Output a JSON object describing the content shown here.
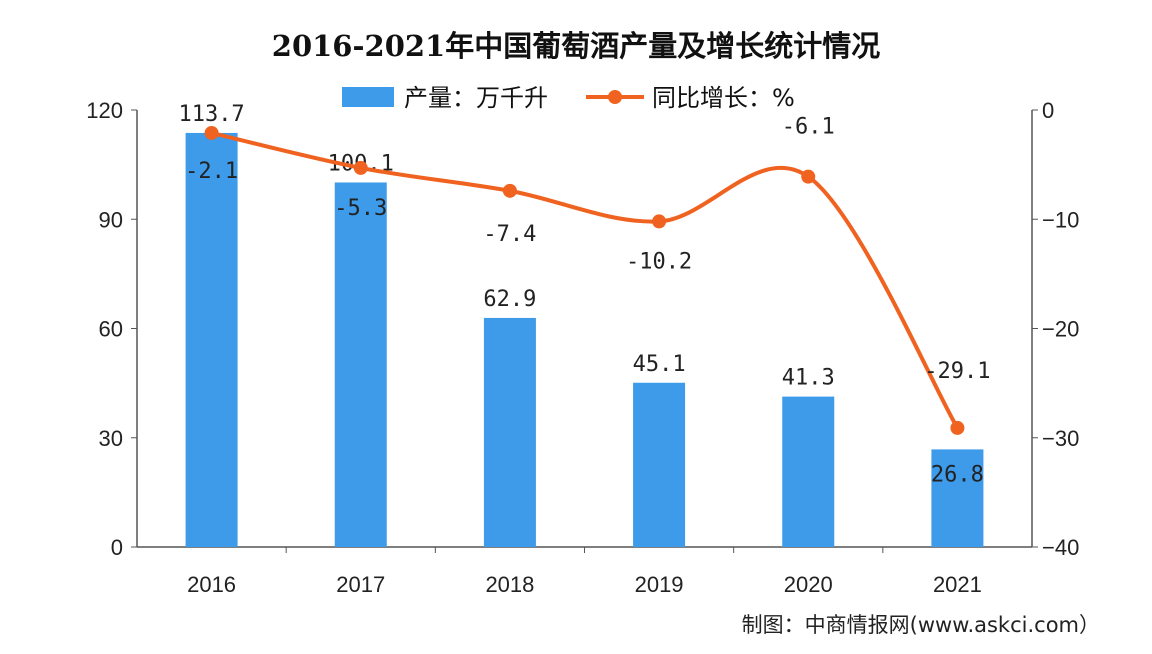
{
  "chart_data": {
    "type": "bar+line",
    "title": "2016-2021年中国葡萄酒产量及增长统计情况",
    "categories": [
      "2016",
      "2017",
      "2018",
      "2019",
      "2020",
      "2021"
    ],
    "series": [
      {
        "name": "产量：万千升",
        "type": "bar",
        "axis": "left",
        "color": "#3d9be9",
        "values": [
          113.7,
          100.1,
          62.9,
          45.1,
          41.3,
          26.8
        ],
        "labels": [
          "113.7",
          "100.1",
          "62.9",
          "45.1",
          "41.3",
          "26.8"
        ]
      },
      {
        "name": "同比增长：%",
        "type": "line",
        "axis": "right",
        "color": "#f0621f",
        "values": [
          -2.1,
          -5.3,
          -7.4,
          -10.2,
          -6.1,
          -29.1
        ],
        "labels": [
          "-2.1",
          "-5.3",
          "-7.4",
          "-10.2",
          "-6.1",
          "-29.1"
        ]
      }
    ],
    "y_left": {
      "min": 0,
      "max": 120,
      "ticks": [
        "0",
        "30",
        "60",
        "90",
        "120"
      ]
    },
    "y_right": {
      "min": -40,
      "max": 0,
      "ticks": [
        "-40",
        "-30",
        "-20",
        "-10",
        "0"
      ]
    },
    "legend": "top-center",
    "grid": false
  },
  "source": "制图：中商情报网(www.askci.com）"
}
